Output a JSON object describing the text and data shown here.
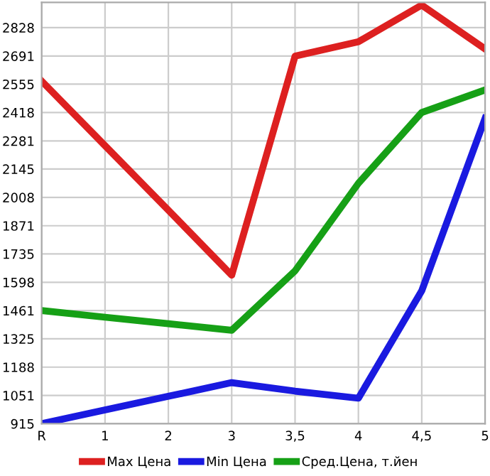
{
  "chart_data": {
    "type": "line",
    "categories": [
      "R",
      "1",
      "2",
      "3",
      "3,5",
      "4",
      "4,5",
      "5"
    ],
    "series": [
      {
        "name": "Max Цена",
        "color": "#dd2020",
        "values": [
          2570,
          2258,
          1946,
          1632,
          2690,
          2760,
          2937,
          2725
        ]
      },
      {
        "name": "Min Цена",
        "color": "#1a1ae0",
        "values": [
          915,
          981,
          1047,
          1113,
          1072,
          1038,
          1557,
          2390
        ]
      },
      {
        "name": "Сред.Цена, т.йен",
        "color": "#16a016",
        "values": [
          1461,
          1429,
          1398,
          1366,
          1653,
          2076,
          2418,
          2527
        ]
      }
    ],
    "ylim": [
      915,
      2950
    ],
    "yticks": [
      915,
      1051,
      1188,
      1325,
      1461,
      1598,
      1735,
      1871,
      2008,
      2145,
      2281,
      2418,
      2555,
      2691,
      2828
    ],
    "grid": true,
    "legend": "bottom",
    "marker": "none",
    "line_style": "solid"
  }
}
